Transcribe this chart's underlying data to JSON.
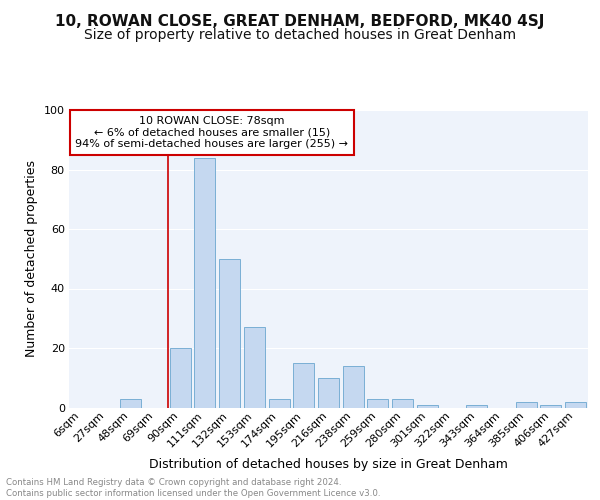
{
  "title1": "10, ROWAN CLOSE, GREAT DENHAM, BEDFORD, MK40 4SJ",
  "title2": "Size of property relative to detached houses in Great Denham",
  "xlabel": "Distribution of detached houses by size in Great Denham",
  "ylabel": "Number of detached properties",
  "categories": [
    "6sqm",
    "27sqm",
    "48sqm",
    "69sqm",
    "90sqm",
    "111sqm",
    "132sqm",
    "153sqm",
    "174sqm",
    "195sqm",
    "216sqm",
    "238sqm",
    "259sqm",
    "280sqm",
    "301sqm",
    "322sqm",
    "343sqm",
    "364sqm",
    "385sqm",
    "406sqm",
    "427sqm"
  ],
  "values": [
    0,
    0,
    3,
    0,
    20,
    84,
    50,
    27,
    3,
    15,
    10,
    14,
    3,
    3,
    1,
    0,
    1,
    0,
    2,
    1,
    2
  ],
  "bar_color": "#c5d8f0",
  "bar_edge_color": "#7aafd4",
  "vline_x": 3.5,
  "vline_color": "#cc0000",
  "annotation_text": "10 ROWAN CLOSE: 78sqm\n← 6% of detached houses are smaller (15)\n94% of semi-detached houses are larger (255) →",
  "annotation_box_color": "#ffffff",
  "annotation_box_edge_color": "#cc0000",
  "ylim": [
    0,
    100
  ],
  "yticks": [
    0,
    20,
    40,
    60,
    80,
    100
  ],
  "footer_text": "Contains HM Land Registry data © Crown copyright and database right 2024.\nContains public sector information licensed under the Open Government Licence v3.0.",
  "background_color": "#eef3fb",
  "fig_background_color": "#ffffff",
  "grid_color": "#ffffff",
  "title1_fontsize": 11,
  "title2_fontsize": 10,
  "xlabel_fontsize": 9,
  "ylabel_fontsize": 9,
  "tick_fontsize": 8
}
